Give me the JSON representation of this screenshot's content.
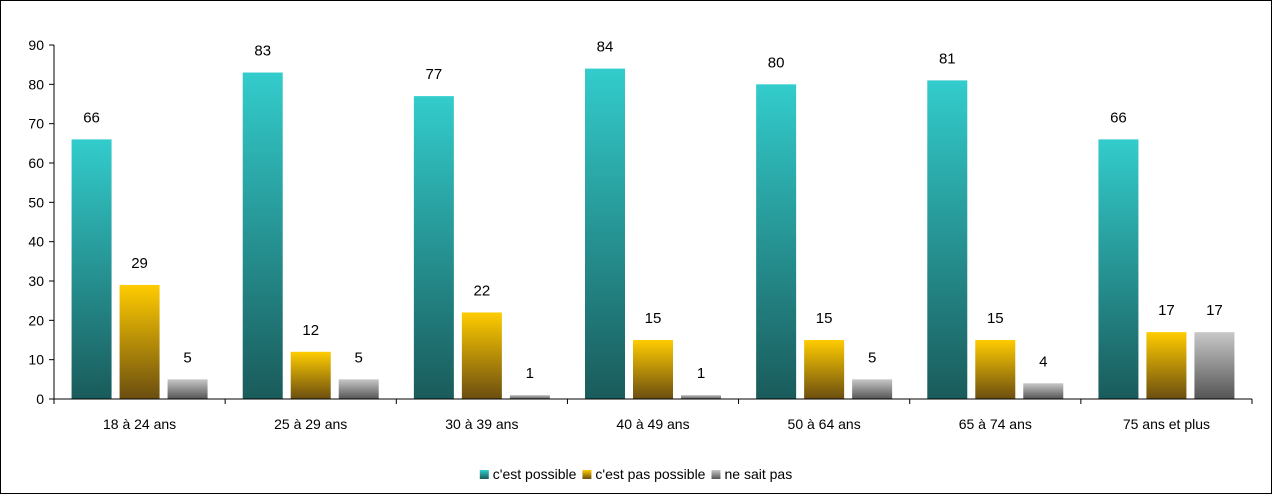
{
  "chart_data": {
    "type": "bar",
    "categories": [
      "18 à 24 ans",
      "25 à 29 ans",
      "30 à 39 ans",
      "40 à 49 ans",
      "50 à 64 ans",
      "65 à 74 ans",
      "75 ans et plus"
    ],
    "series": [
      {
        "name": "c'est possible",
        "values": [
          66,
          83,
          77,
          84,
          80,
          81,
          66
        ],
        "color": "#33CCCC",
        "dark": "#1A5B5B"
      },
      {
        "name": "c'est pas possible",
        "values": [
          29,
          12,
          22,
          15,
          15,
          15,
          17
        ],
        "color": "#FFCC00",
        "dark": "#6B4E10"
      },
      {
        "name": "ne sait pas",
        "values": [
          5,
          5,
          1,
          1,
          5,
          4,
          17
        ],
        "color": "#C8C8C8",
        "dark": "#555555"
      }
    ],
    "ylim": [
      0,
      90
    ],
    "yticks": [
      0,
      10,
      20,
      30,
      40,
      50,
      60,
      70,
      80,
      90
    ],
    "legend_position": "bottom",
    "grid": false
  }
}
